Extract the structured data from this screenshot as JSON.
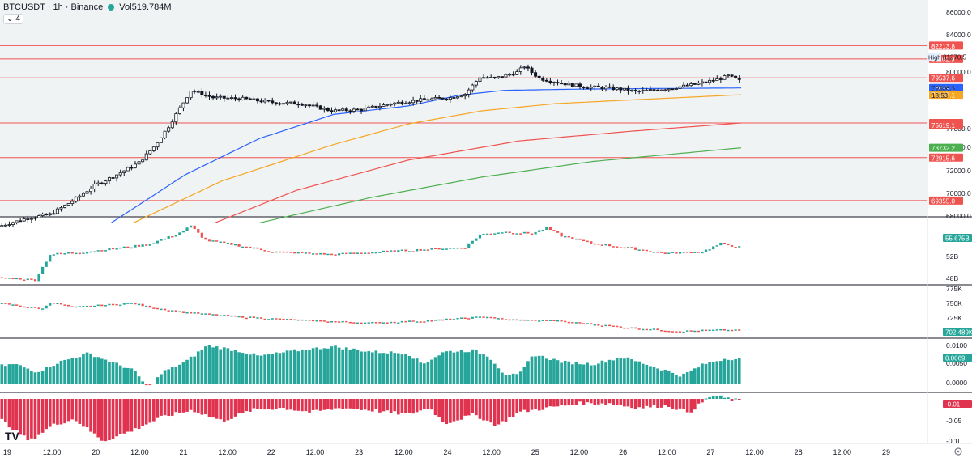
{
  "header": {
    "symbol": "BTCUSDT · 1h · Binance",
    "volume": "Vol519.784M",
    "collapse_count": "4",
    "status_dot_color": "#26a69a"
  },
  "colors": {
    "up": "#26a69a",
    "down": "#ef5350",
    "level_line": "#ef5350",
    "ma_blue": "#2962ff",
    "ma_orange": "#f5a623",
    "ma_red": "#ef5350",
    "ma_green": "#4caf50",
    "pane_bg": "#f0f3f4"
  },
  "chart_data": [
    {
      "type": "candlestick",
      "pane": "price",
      "ylim": [
        68000,
        86000
      ],
      "price_ticks": [
        "86000.0",
        "84000.0",
        "80000.0",
        "77000.0",
        "74000.0",
        "72000.0",
        "70000.0",
        "68000.0"
      ],
      "horizontal_levels": [
        82213.8,
        81102.9,
        79537.6,
        75792.9,
        75619.1,
        72915.6,
        69355.0
      ],
      "price_labels": [
        {
          "text": "82213.8",
          "value": 82213.8,
          "color": "#ef5350"
        },
        {
          "text": "81102.9",
          "value": 81102.9,
          "color": "#ef5350"
        },
        {
          "text": "79537.6",
          "value": 79537.6,
          "color": "#ef5350"
        },
        {
          "text": "78699.2",
          "value": 78699.2,
          "color": "#2962ff"
        },
        {
          "text": "78137.1",
          "value": 78137.1,
          "color": "#f5a623"
        },
        {
          "text": "75792.9",
          "value": 75792.9,
          "color": "#ef5350"
        },
        {
          "text": "75619.1",
          "value": 75619.1,
          "color": "#ef5350"
        },
        {
          "text": "73732.2",
          "value": 73732.2,
          "color": "#4caf50"
        },
        {
          "text": "72915.6",
          "value": 72915.6,
          "color": "#ef5350"
        },
        {
          "text": "69355.0",
          "value": 69355.0,
          "color": "#ef5350"
        }
      ],
      "high_label": "High",
      "high_value": "81270.5",
      "last_price": "79306.3",
      "countdown": "13:53",
      "close_path": [
        [
          0,
          67200
        ],
        [
          0.04,
          67900
        ],
        [
          0.07,
          68200
        ],
        [
          0.1,
          69300
        ],
        [
          0.13,
          70600
        ],
        [
          0.16,
          71500
        ],
        [
          0.19,
          72500
        ],
        [
          0.21,
          73800
        ],
        [
          0.23,
          75500
        ],
        [
          0.26,
          78500
        ],
        [
          0.29,
          77900
        ],
        [
          0.33,
          77800
        ],
        [
          0.37,
          77500
        ],
        [
          0.41,
          77400
        ],
        [
          0.45,
          76800
        ],
        [
          0.49,
          76900
        ],
        [
          0.53,
          77400
        ],
        [
          0.57,
          77700
        ],
        [
          0.61,
          77900
        ],
        [
          0.63,
          78200
        ],
        [
          0.65,
          79600
        ],
        [
          0.67,
          79500
        ],
        [
          0.7,
          80000
        ],
        [
          0.71,
          80500
        ],
        [
          0.73,
          79500
        ],
        [
          0.76,
          79100
        ],
        [
          0.79,
          78800
        ],
        [
          0.82,
          78700
        ],
        [
          0.84,
          78600
        ],
        [
          0.86,
          78400
        ],
        [
          0.88,
          78500
        ],
        [
          0.91,
          78700
        ],
        [
          0.94,
          79000
        ],
        [
          0.97,
          79400
        ],
        [
          0.985,
          79700
        ],
        [
          1,
          79306
        ]
      ],
      "moving_averages": [
        {
          "color": "#2962ff",
          "points": [
            [
              0.15,
              67500
            ],
            [
              0.25,
              71500
            ],
            [
              0.35,
              74500
            ],
            [
              0.45,
              76500
            ],
            [
              0.55,
              77200
            ],
            [
              0.62,
              78100
            ],
            [
              0.68,
              78500
            ],
            [
              0.78,
              78600
            ],
            [
              0.88,
              78650
            ],
            [
              1,
              78699
            ]
          ]
        },
        {
          "color": "#f5a623",
          "points": [
            [
              0.18,
              67500
            ],
            [
              0.3,
              71000
            ],
            [
              0.45,
              74000
            ],
            [
              0.55,
              75700
            ],
            [
              0.65,
              76800
            ],
            [
              0.75,
              77400
            ],
            [
              0.85,
              77700
            ],
            [
              1,
              78137
            ]
          ]
        },
        {
          "color": "#ef5350",
          "points": [
            [
              0.29,
              67500
            ],
            [
              0.4,
              70200
            ],
            [
              0.55,
              72700
            ],
            [
              0.7,
              74300
            ],
            [
              0.85,
              75100
            ],
            [
              1,
              75792
            ]
          ]
        },
        {
          "color": "#4caf50",
          "points": [
            [
              0.35,
              67500
            ],
            [
              0.5,
              69600
            ],
            [
              0.65,
              71300
            ],
            [
              0.8,
              72600
            ],
            [
              1,
              73732
            ]
          ]
        }
      ]
    },
    {
      "type": "candlestick",
      "pane": "indicator-1",
      "ticks": [
        "52B",
        "48B"
      ],
      "last_label": "55.675B",
      "close_path": [
        [
          0,
          0.05
        ],
        [
          0.05,
          0.0
        ],
        [
          0.07,
          0.45
        ],
        [
          0.12,
          0.5
        ],
        [
          0.2,
          0.62
        ],
        [
          0.24,
          0.8
        ],
        [
          0.26,
          0.95
        ],
        [
          0.28,
          0.7
        ],
        [
          0.32,
          0.62
        ],
        [
          0.37,
          0.5
        ],
        [
          0.45,
          0.45
        ],
        [
          0.55,
          0.52
        ],
        [
          0.63,
          0.58
        ],
        [
          0.65,
          0.8
        ],
        [
          0.68,
          0.85
        ],
        [
          0.72,
          0.82
        ],
        [
          0.74,
          0.92
        ],
        [
          0.76,
          0.78
        ],
        [
          0.8,
          0.65
        ],
        [
          0.86,
          0.55
        ],
        [
          0.9,
          0.47
        ],
        [
          0.95,
          0.5
        ],
        [
          0.975,
          0.64
        ],
        [
          1,
          0.58
        ]
      ]
    },
    {
      "type": "candlestick",
      "pane": "indicator-2",
      "ticks": [
        "775K",
        "750K",
        "725K"
      ],
      "last_label": "702.489K",
      "close_path": [
        [
          0,
          0.72
        ],
        [
          0.06,
          0.58
        ],
        [
          0.07,
          0.75
        ],
        [
          0.1,
          0.62
        ],
        [
          0.15,
          0.68
        ],
        [
          0.18,
          0.72
        ],
        [
          0.2,
          0.64
        ],
        [
          0.25,
          0.5
        ],
        [
          0.32,
          0.4
        ],
        [
          0.4,
          0.32
        ],
        [
          0.5,
          0.25
        ],
        [
          0.58,
          0.3
        ],
        [
          0.66,
          0.4
        ],
        [
          0.68,
          0.33
        ],
        [
          0.75,
          0.3
        ],
        [
          0.8,
          0.22
        ],
        [
          0.86,
          0.12
        ],
        [
          0.92,
          0.05
        ],
        [
          0.97,
          0.08
        ],
        [
          1,
          0.07
        ]
      ]
    },
    {
      "type": "bar",
      "pane": "indicator-3",
      "ticks": [
        "0.0100",
        "0.0050",
        "0.0000"
      ],
      "last_label": "0.0069",
      "values_path": [
        [
          0,
          0.45
        ],
        [
          0.02,
          0.5
        ],
        [
          0.05,
          0.3
        ],
        [
          0.08,
          0.55
        ],
        [
          0.12,
          0.78
        ],
        [
          0.15,
          0.55
        ],
        [
          0.18,
          0.35
        ],
        [
          0.2,
          -0.12
        ],
        [
          0.22,
          0.3
        ],
        [
          0.25,
          0.55
        ],
        [
          0.28,
          0.98
        ],
        [
          0.32,
          0.85
        ],
        [
          0.35,
          0.7
        ],
        [
          0.4,
          0.85
        ],
        [
          0.45,
          0.95
        ],
        [
          0.5,
          0.82
        ],
        [
          0.55,
          0.78
        ],
        [
          0.57,
          0.5
        ],
        [
          0.6,
          0.82
        ],
        [
          0.64,
          0.85
        ],
        [
          0.66,
          0.7
        ],
        [
          0.68,
          0.25
        ],
        [
          0.7,
          0.2
        ],
        [
          0.72,
          0.75
        ],
        [
          0.76,
          0.55
        ],
        [
          0.8,
          0.5
        ],
        [
          0.84,
          0.68
        ],
        [
          0.88,
          0.45
        ],
        [
          0.92,
          0.2
        ],
        [
          0.95,
          0.5
        ],
        [
          0.98,
          0.65
        ],
        [
          1,
          0.62
        ]
      ]
    },
    {
      "type": "bar",
      "pane": "indicator-4",
      "ticks": [
        "-0.05",
        "-0.10"
      ],
      "last_label": "-0.01",
      "values_path": [
        [
          0,
          -0.45
        ],
        [
          0.04,
          -0.95
        ],
        [
          0.07,
          -0.6
        ],
        [
          0.1,
          -0.45
        ],
        [
          0.14,
          -0.95
        ],
        [
          0.18,
          -0.7
        ],
        [
          0.22,
          -0.4
        ],
        [
          0.26,
          -0.25
        ],
        [
          0.3,
          -0.5
        ],
        [
          0.34,
          -0.25
        ],
        [
          0.38,
          -0.2
        ],
        [
          0.42,
          -0.3
        ],
        [
          0.46,
          -0.2
        ],
        [
          0.5,
          -0.25
        ],
        [
          0.55,
          -0.35
        ],
        [
          0.58,
          -0.2
        ],
        [
          0.6,
          -0.55
        ],
        [
          0.64,
          -0.35
        ],
        [
          0.67,
          -0.6
        ],
        [
          0.7,
          -0.3
        ],
        [
          0.74,
          -0.2
        ],
        [
          0.78,
          -0.1
        ],
        [
          0.82,
          -0.1
        ],
        [
          0.86,
          -0.2
        ],
        [
          0.9,
          -0.15
        ],
        [
          0.93,
          -0.3
        ],
        [
          0.96,
          0.08
        ],
        [
          1,
          -0.05
        ]
      ]
    }
  ],
  "time_axis": [
    {
      "label": "19",
      "pos": 0.008
    },
    {
      "label": "12:00",
      "pos": 0.058
    },
    {
      "label": "20",
      "pos": 0.107
    },
    {
      "label": "12:00",
      "pos": 0.156
    },
    {
      "label": "21",
      "pos": 0.205
    },
    {
      "label": "12:00",
      "pos": 0.254
    },
    {
      "label": "22",
      "pos": 0.303
    },
    {
      "label": "12:00",
      "pos": 0.352
    },
    {
      "label": "23",
      "pos": 0.401
    },
    {
      "label": "12:00",
      "pos": 0.451
    },
    {
      "label": "24",
      "pos": 0.5
    },
    {
      "label": "12:00",
      "pos": 0.549
    },
    {
      "label": "25",
      "pos": 0.598
    },
    {
      "label": "12:00",
      "pos": 0.647
    },
    {
      "label": "26",
      "pos": 0.696
    },
    {
      "label": "12:00",
      "pos": 0.745
    },
    {
      "label": "27",
      "pos": 0.794
    },
    {
      "label": "12:00",
      "pos": 0.843
    },
    {
      "label": "28",
      "pos": 0.892
    },
    {
      "label": "12:00",
      "pos": 0.941
    },
    {
      "label": "29",
      "pos": 0.99
    },
    {
      "label": "12:00",
      "pos": 1.04
    }
  ],
  "logo": "TV"
}
